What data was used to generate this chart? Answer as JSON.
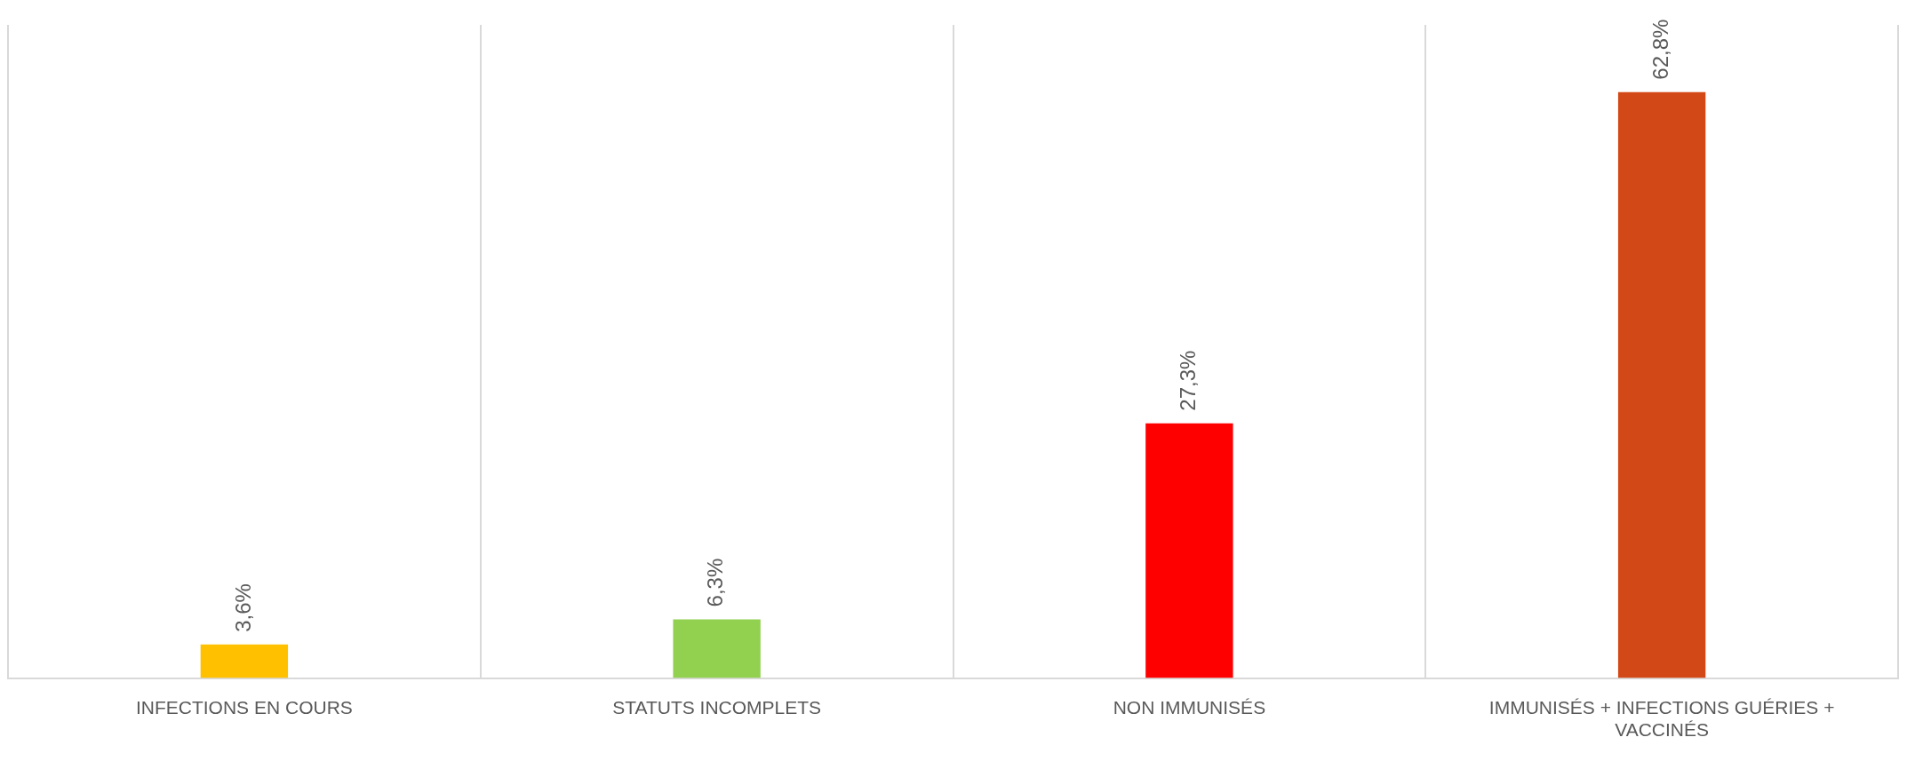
{
  "chart_data": {
    "type": "bar",
    "categories": [
      "INFECTIONS EN COURS",
      "STATUTS INCOMPLETS",
      "NON IMMUNISÉS",
      "IMMUNISÉS + INFECTIONS GUÉRIES + VACCINÉS"
    ],
    "values": [
      3.6,
      6.3,
      27.3,
      62.8
    ],
    "value_labels": [
      "3,6%",
      "6,3%",
      "27,3%",
      "62,8%"
    ],
    "colors": [
      "#ffc000",
      "#92d050",
      "#ff0000",
      "#d34817"
    ],
    "ylim": [
      0,
      70
    ],
    "grid": "x",
    "legend": false,
    "tick_labels": "x"
  }
}
